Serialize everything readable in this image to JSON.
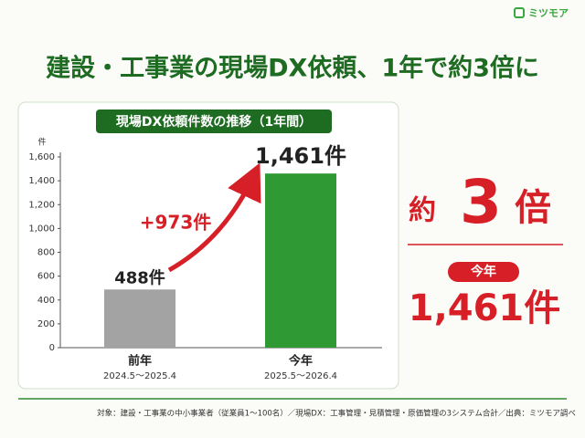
{
  "logo": "ミツモア",
  "headline": "建設・工事業の現場DX依頼、1年で約3倍に",
  "chart_data": {
    "type": "bar",
    "title": "現場DX依頼件数の推移（1年間）",
    "y_unit": "件",
    "categories": [
      "前年",
      "今年"
    ],
    "periods": [
      "2024.5～2025.4",
      "2025.5～2026.4"
    ],
    "values": [
      488,
      1461
    ],
    "value_labels": [
      "488件",
      "1,461件"
    ],
    "colors": [
      "#a3a3a3",
      "#2f9a33"
    ],
    "annotation": "+973件",
    "ylim": [
      0,
      1600
    ],
    "yticks": [
      0,
      200,
      400,
      600,
      800,
      {
        "value": 1000,
        "label": "1,000"
      },
      {
        "value": 1200,
        "label": "1,200"
      },
      {
        "value": 1400,
        "label": "1,400"
      },
      {
        "value": 1600,
        "label": "1,600"
      }
    ]
  },
  "side": {
    "prefix": "約",
    "number": "3",
    "suffix": "倍",
    "badge": "今年",
    "total": "1,461件"
  },
  "footnote": "対象：建設・工事業の中小事業者（従業員1〜100名）／現場DX：工事管理・見積管理・原価管理の3システム合計／出典：ミツモア調べ"
}
